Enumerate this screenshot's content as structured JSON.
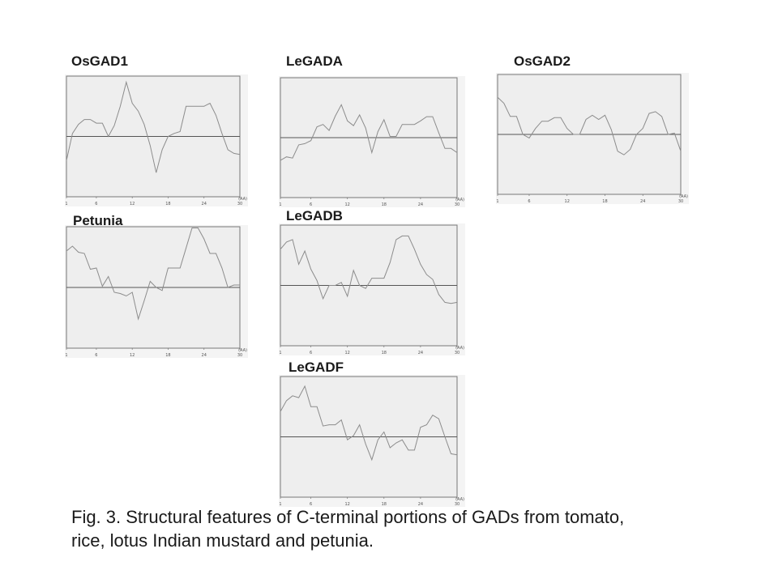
{
  "panels": {
    "osgad1": {
      "title": "OsGAD1"
    },
    "legada": {
      "title": "LeGADA"
    },
    "osgad2": {
      "title": "OsGAD2"
    },
    "petunia": {
      "title": "Petunia"
    },
    "legadb": {
      "title": "LeGADB"
    },
    "legadf": {
      "title": "LeGADF"
    }
  },
  "caption": {
    "line1": "Fig. 3. Structural features of C-terminal portions of GADs from tomato,",
    "line2": "rice, lotus Indian mustard and petunia."
  },
  "colors": {
    "plot_bg": "#eeeeee",
    "frame": "#777777",
    "line": "#8c8c8c",
    "midline": "#555555"
  },
  "chart_data": [
    {
      "type": "line",
      "title": "OsGAD1",
      "xlabel": "(AA)",
      "x_ticks": [
        "1",
        "6",
        "12",
        "18",
        "24",
        "30"
      ],
      "x": [
        1,
        2,
        3,
        4,
        5,
        6,
        7,
        8,
        9,
        10,
        11,
        12,
        13,
        14,
        15,
        16,
        17,
        18,
        19,
        20,
        21,
        22,
        23,
        24,
        25,
        26,
        27,
        28,
        29,
        30
      ],
      "values": [
        -0.4,
        0.05,
        0.2,
        0.28,
        0.28,
        0.22,
        0.22,
        0.0,
        0.18,
        0.5,
        0.9,
        0.55,
        0.42,
        0.2,
        -0.15,
        -0.6,
        -0.22,
        0.0,
        0.05,
        0.08,
        0.5,
        0.5,
        0.5,
        0.5,
        0.55,
        0.35,
        0.05,
        -0.22,
        -0.28,
        -0.3
      ]
    },
    {
      "type": "line",
      "title": "LeGADA",
      "xlabel": "(AA)",
      "x_ticks": [
        "1",
        "6",
        "12",
        "18",
        "24",
        "30"
      ],
      "x": [
        1,
        2,
        3,
        4,
        5,
        6,
        7,
        8,
        9,
        10,
        11,
        12,
        13,
        14,
        15,
        16,
        17,
        18,
        19,
        20,
        21,
        22,
        23,
        24,
        25,
        26,
        27,
        28,
        29,
        30
      ],
      "values": [
        -0.38,
        -0.32,
        -0.34,
        -0.12,
        -0.1,
        -0.05,
        0.18,
        0.22,
        0.12,
        0.36,
        0.55,
        0.28,
        0.2,
        0.38,
        0.16,
        -0.25,
        0.1,
        0.3,
        0.02,
        0.02,
        0.22,
        0.22,
        0.22,
        0.28,
        0.35,
        0.35,
        0.08,
        -0.18,
        -0.18,
        -0.25
      ]
    },
    {
      "type": "line",
      "title": "OsGAD2",
      "xlabel": "(AA)",
      "x_ticks": [
        "1",
        "6",
        "12",
        "18",
        "24",
        "30"
      ],
      "x": [
        1,
        2,
        3,
        4,
        5,
        6,
        7,
        8,
        9,
        10,
        11,
        12,
        13,
        14,
        15,
        16,
        17,
        18,
        19,
        20,
        21,
        22,
        23,
        24,
        25,
        26,
        27,
        28,
        29,
        30
      ],
      "values": [
        0.62,
        0.52,
        0.3,
        0.3,
        0.0,
        -0.06,
        0.1,
        0.22,
        0.22,
        0.28,
        0.28,
        0.1,
        0.0,
        0.0,
        0.25,
        0.32,
        0.25,
        0.32,
        0.08,
        -0.28,
        -0.34,
        -0.25,
        0.0,
        0.1,
        0.35,
        0.38,
        0.3,
        0.0,
        0.02,
        -0.28
      ]
    },
    {
      "type": "line",
      "title": "Petunia",
      "xlabel": "(AA)",
      "x_ticks": [
        "1",
        "6",
        "12",
        "18",
        "24",
        "30"
      ],
      "x": [
        1,
        2,
        3,
        4,
        5,
        6,
        7,
        8,
        9,
        10,
        11,
        12,
        13,
        14,
        15,
        16,
        17,
        18,
        19,
        20,
        21,
        22,
        23,
        24,
        25,
        26,
        27,
        28,
        29,
        30
      ],
      "values": [
        0.6,
        0.68,
        0.58,
        0.56,
        0.3,
        0.32,
        0.02,
        0.18,
        -0.08,
        -0.1,
        -0.14,
        -0.08,
        -0.52,
        -0.22,
        0.1,
        0.0,
        -0.05,
        0.32,
        0.32,
        0.32,
        0.65,
        0.98,
        0.98,
        0.8,
        0.56,
        0.56,
        0.32,
        0.0,
        0.04,
        0.04
      ]
    },
    {
      "type": "line",
      "title": "LeGADB",
      "xlabel": "(AA)",
      "x_ticks": [
        "1",
        "6",
        "12",
        "18",
        "24",
        "30"
      ],
      "x": [
        1,
        2,
        3,
        4,
        5,
        6,
        7,
        8,
        9,
        10,
        11,
        12,
        13,
        14,
        15,
        16,
        17,
        18,
        19,
        20,
        21,
        22,
        23,
        24,
        25,
        26,
        27,
        28,
        29,
        30
      ],
      "values": [
        0.6,
        0.72,
        0.76,
        0.35,
        0.57,
        0.27,
        0.08,
        -0.22,
        0.0,
        0.0,
        0.05,
        -0.18,
        0.25,
        0.0,
        -0.05,
        0.12,
        0.12,
        0.12,
        0.38,
        0.76,
        0.82,
        0.82,
        0.6,
        0.35,
        0.18,
        0.1,
        -0.15,
        -0.28,
        -0.3,
        -0.28
      ]
    },
    {
      "type": "line",
      "title": "LeGADF",
      "xlabel": "(AA)",
      "x_ticks": [
        "1",
        "6",
        "12",
        "18",
        "24",
        "30"
      ],
      "x": [
        1,
        2,
        3,
        4,
        5,
        6,
        7,
        8,
        9,
        10,
        11,
        12,
        13,
        14,
        15,
        16,
        17,
        18,
        19,
        20,
        21,
        22,
        23,
        24,
        25,
        26,
        27,
        28,
        29,
        30
      ],
      "values": [
        0.42,
        0.6,
        0.68,
        0.65,
        0.84,
        0.5,
        0.5,
        0.18,
        0.2,
        0.2,
        0.28,
        -0.05,
        0.02,
        0.2,
        -0.12,
        -0.38,
        -0.05,
        0.08,
        -0.18,
        -0.1,
        -0.05,
        -0.22,
        -0.22,
        0.16,
        0.2,
        0.36,
        0.3,
        0.0,
        -0.28,
        -0.3
      ]
    }
  ]
}
